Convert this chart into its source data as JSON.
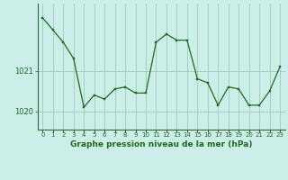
{
  "x": [
    0,
    1,
    2,
    3,
    4,
    5,
    6,
    7,
    8,
    9,
    10,
    11,
    12,
    13,
    14,
    15,
    16,
    17,
    18,
    19,
    20,
    21,
    22,
    23
  ],
  "y": [
    1022.3,
    1022.0,
    1021.7,
    1021.3,
    1020.1,
    1020.4,
    1020.3,
    1020.55,
    1020.6,
    1020.45,
    1020.45,
    1021.7,
    1021.9,
    1021.75,
    1021.75,
    1020.8,
    1020.7,
    1020.15,
    1020.6,
    1020.55,
    1020.15,
    1020.15,
    1020.5,
    1021.1
  ],
  "line_color": "#1a6e1a",
  "marker_color": "#1a6e1a",
  "bg_color": "#cceee8",
  "grid_color": "#99ccbb",
  "title": "Graphe pression niveau de la mer (hPa)",
  "ylabel_ticks": [
    1020,
    1021
  ],
  "ylim": [
    1019.55,
    1022.65
  ],
  "xtick_labels": [
    "0",
    "1",
    "2",
    "3",
    "4",
    "5",
    "6",
    "7",
    "8",
    "9",
    "10",
    "11",
    "12",
    "13",
    "14",
    "15",
    "16",
    "17",
    "18",
    "19",
    "20",
    "21",
    "22",
    "23"
  ]
}
